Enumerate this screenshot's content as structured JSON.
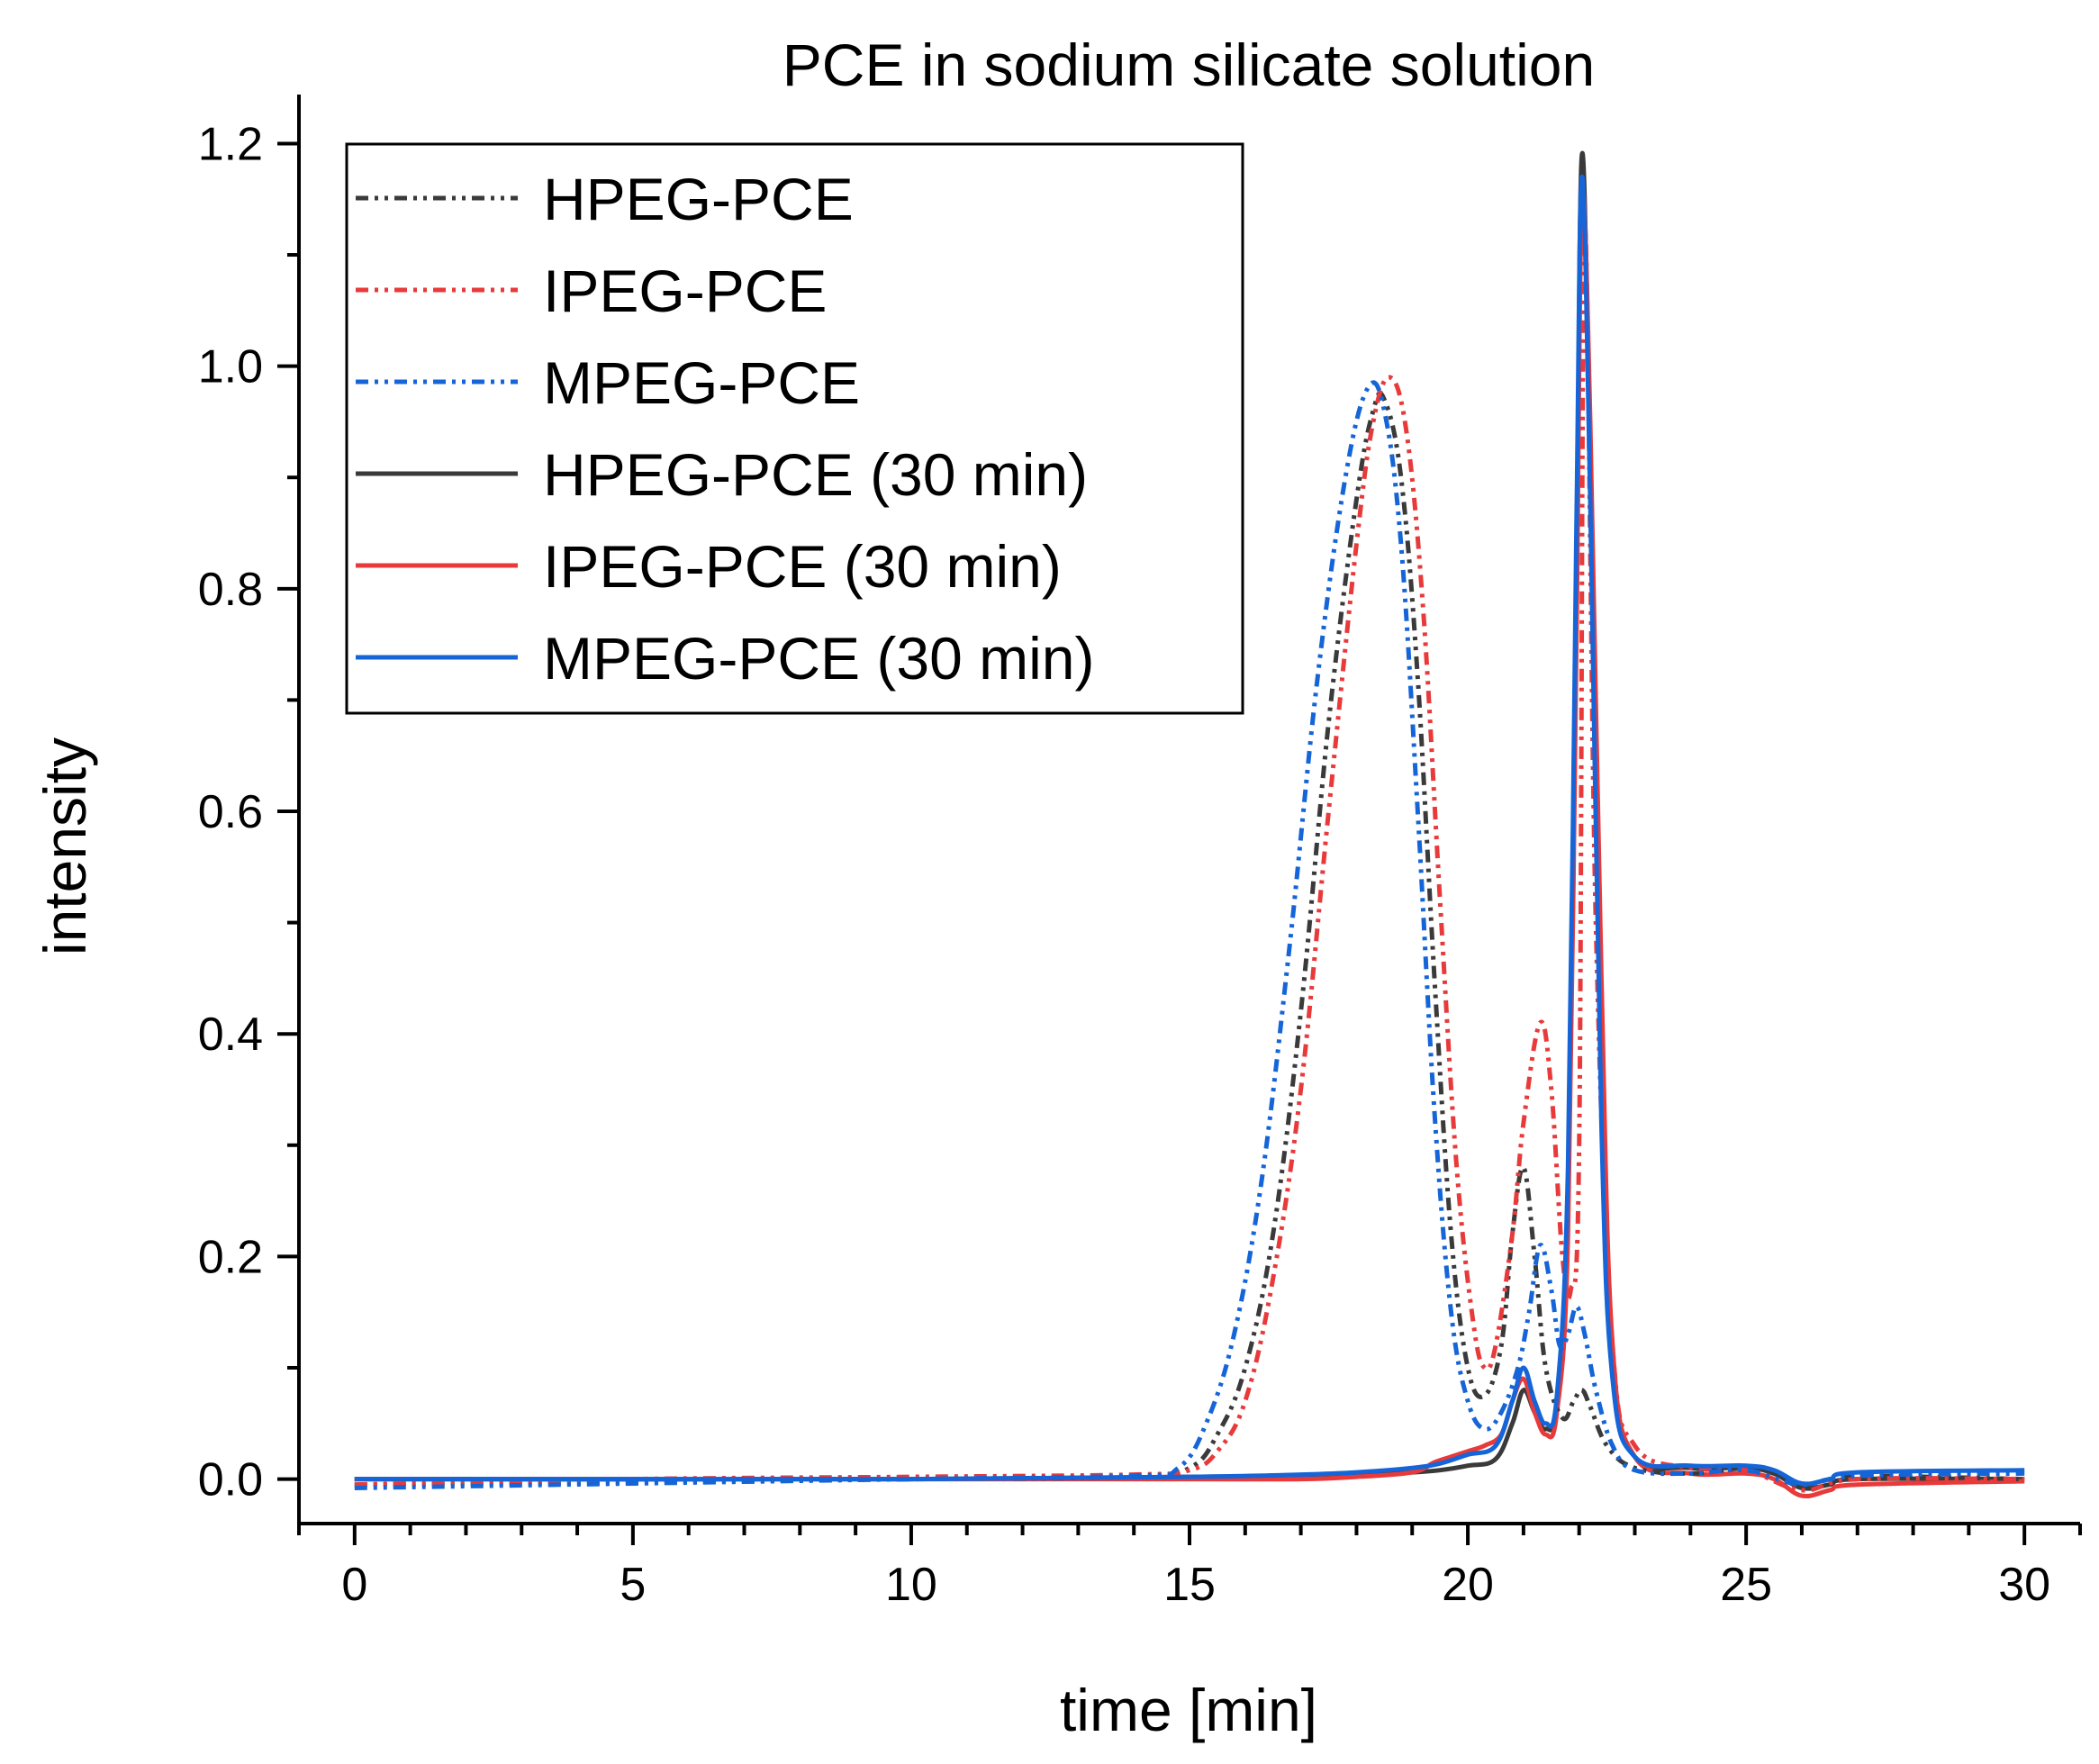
{
  "chart_data": {
    "type": "line",
    "title": "PCE in sodium silicate solution",
    "xlabel": "time [min]",
    "ylabel": "intensity",
    "xlim": [
      -1,
      31
    ],
    "ylim": [
      -0.04,
      1.24
    ],
    "xticks": [
      0,
      5,
      10,
      15,
      20,
      25,
      30
    ],
    "xtick_labels": [
      "0",
      "5",
      "10",
      "15",
      "20",
      "25",
      "30"
    ],
    "yticks": [
      0.0,
      0.2,
      0.4,
      0.6,
      0.8,
      1.0,
      1.2
    ],
    "ytick_labels": [
      "0.0",
      "0.2",
      "0.4",
      "0.6",
      "0.8",
      "1.0",
      "1.2"
    ],
    "legend_position": "top-left",
    "series": [
      {
        "name": "HPEG-PCE",
        "color": "#3a3a3a",
        "style": "dash-dot-dot",
        "points": [
          [
            0,
            -0.005
          ],
          [
            5,
            -0.003
          ],
          [
            10,
            0.0
          ],
          [
            14,
            0.002
          ],
          [
            15,
            0.01
          ],
          [
            15.5,
            0.04
          ],
          [
            16,
            0.1
          ],
          [
            16.5,
            0.22
          ],
          [
            17,
            0.42
          ],
          [
            17.5,
            0.68
          ],
          [
            18,
            0.88
          ],
          [
            18.3,
            0.96
          ],
          [
            18.5,
            0.97
          ],
          [
            18.8,
            0.9
          ],
          [
            19.1,
            0.72
          ],
          [
            19.4,
            0.45
          ],
          [
            19.7,
            0.22
          ],
          [
            20,
            0.1
          ],
          [
            20.3,
            0.075
          ],
          [
            20.6,
            0.12
          ],
          [
            20.8,
            0.22
          ],
          [
            21.0,
            0.28
          ],
          [
            21.2,
            0.2
          ],
          [
            21.4,
            0.1
          ],
          [
            21.7,
            0.055
          ],
          [
            21.9,
            0.07
          ],
          [
            22.05,
            0.08
          ],
          [
            22.2,
            0.065
          ],
          [
            22.5,
            0.03
          ],
          [
            23,
            0.01
          ],
          [
            24,
            0.005
          ],
          [
            25,
            0.01
          ],
          [
            25.5,
            0.005
          ],
          [
            26,
            -0.005
          ],
          [
            26.5,
            0.0
          ],
          [
            27,
            0.003
          ],
          [
            30,
            0.0
          ]
        ]
      },
      {
        "name": "IPEG-PCE",
        "color": "#e83a3a",
        "style": "dash-dot-dot",
        "points": [
          [
            0,
            -0.005
          ],
          [
            5,
            0.0
          ],
          [
            10,
            0.002
          ],
          [
            14,
            0.004
          ],
          [
            15,
            0.008
          ],
          [
            15.5,
            0.025
          ],
          [
            16,
            0.07
          ],
          [
            16.5,
            0.18
          ],
          [
            17,
            0.35
          ],
          [
            17.5,
            0.6
          ],
          [
            18,
            0.84
          ],
          [
            18.3,
            0.95
          ],
          [
            18.6,
            0.99
          ],
          [
            18.9,
            0.94
          ],
          [
            19.2,
            0.78
          ],
          [
            19.5,
            0.52
          ],
          [
            19.8,
            0.28
          ],
          [
            20.1,
            0.14
          ],
          [
            20.3,
            0.1
          ],
          [
            20.5,
            0.12
          ],
          [
            20.8,
            0.22
          ],
          [
            21.0,
            0.32
          ],
          [
            21.3,
            0.41
          ],
          [
            21.5,
            0.35
          ],
          [
            21.7,
            0.2
          ],
          [
            21.85,
            0.17
          ],
          [
            22.0,
            0.3
          ],
          [
            22.1,
            1.12
          ],
          [
            22.3,
            0.5
          ],
          [
            22.6,
            0.12
          ],
          [
            23,
            0.03
          ],
          [
            24,
            0.01
          ],
          [
            25,
            0.008
          ],
          [
            26,
            -0.01
          ],
          [
            27,
            0.0
          ],
          [
            30,
            0.0
          ]
        ]
      },
      {
        "name": "MPEG-PCE",
        "color": "#1565d8",
        "style": "dash-dot-dot",
        "points": [
          [
            0,
            -0.008
          ],
          [
            5,
            -0.004
          ],
          [
            10,
            0.0
          ],
          [
            14,
            0.003
          ],
          [
            14.8,
            0.01
          ],
          [
            15.3,
            0.05
          ],
          [
            15.8,
            0.13
          ],
          [
            16.3,
            0.27
          ],
          [
            16.8,
            0.48
          ],
          [
            17.3,
            0.72
          ],
          [
            17.8,
            0.9
          ],
          [
            18.2,
            0.98
          ],
          [
            18.5,
            0.96
          ],
          [
            18.8,
            0.84
          ],
          [
            19.1,
            0.6
          ],
          [
            19.4,
            0.33
          ],
          [
            19.7,
            0.15
          ],
          [
            20,
            0.07
          ],
          [
            20.3,
            0.045
          ],
          [
            20.6,
            0.06
          ],
          [
            20.9,
            0.1
          ],
          [
            21.1,
            0.15
          ],
          [
            21.3,
            0.21
          ],
          [
            21.5,
            0.17
          ],
          [
            21.65,
            0.12
          ],
          [
            21.8,
            0.13
          ],
          [
            21.95,
            0.155
          ],
          [
            22.1,
            0.13
          ],
          [
            22.3,
            0.08
          ],
          [
            22.6,
            0.03
          ],
          [
            23,
            0.008
          ],
          [
            24,
            0.005
          ],
          [
            25,
            0.008
          ],
          [
            26,
            -0.005
          ],
          [
            27,
            0.003
          ],
          [
            30,
            0.005
          ]
        ]
      },
      {
        "name": "HPEG-PCE (30 min)",
        "color": "#3a3a3a",
        "style": "solid",
        "points": [
          [
            0,
            0.0
          ],
          [
            10,
            0.0
          ],
          [
            15,
            0.002
          ],
          [
            17,
            0.003
          ],
          [
            18,
            0.004
          ],
          [
            19,
            0.006
          ],
          [
            19.5,
            0.008
          ],
          [
            20,
            0.012
          ],
          [
            20.5,
            0.018
          ],
          [
            20.8,
            0.05
          ],
          [
            21.0,
            0.08
          ],
          [
            21.2,
            0.06
          ],
          [
            21.4,
            0.045
          ],
          [
            21.6,
            0.07
          ],
          [
            21.8,
            0.25
          ],
          [
            21.95,
            0.8
          ],
          [
            22.05,
            1.19
          ],
          [
            22.2,
            0.9
          ],
          [
            22.4,
            0.35
          ],
          [
            22.6,
            0.1
          ],
          [
            23,
            0.02
          ],
          [
            24,
            0.01
          ],
          [
            25,
            0.01
          ],
          [
            25.5,
            0.005
          ],
          [
            26,
            -0.008
          ],
          [
            26.5,
            -0.005
          ],
          [
            27,
            0.0
          ],
          [
            30,
            0.0
          ]
        ]
      },
      {
        "name": "IPEG-PCE (30 min)",
        "color": "#e83a3a",
        "style": "solid",
        "points": [
          [
            0,
            0.0
          ],
          [
            10,
            0.0
          ],
          [
            15,
            0.0
          ],
          [
            17,
            0.0
          ],
          [
            18,
            0.002
          ],
          [
            19,
            0.006
          ],
          [
            19.4,
            0.015
          ],
          [
            19.7,
            0.02
          ],
          [
            20,
            0.025
          ],
          [
            20.3,
            0.03
          ],
          [
            20.6,
            0.04
          ],
          [
            20.8,
            0.07
          ],
          [
            21.0,
            0.09
          ],
          [
            21.2,
            0.06
          ],
          [
            21.4,
            0.04
          ],
          [
            21.6,
            0.06
          ],
          [
            21.8,
            0.22
          ],
          [
            21.95,
            0.75
          ],
          [
            22.05,
            1.15
          ],
          [
            22.2,
            0.95
          ],
          [
            22.4,
            0.45
          ],
          [
            22.6,
            0.12
          ],
          [
            23,
            0.02
          ],
          [
            24,
            0.005
          ],
          [
            25,
            0.005
          ],
          [
            25.5,
            0.0
          ],
          [
            26,
            -0.015
          ],
          [
            26.5,
            -0.01
          ],
          [
            27,
            -0.005
          ],
          [
            30,
            -0.002
          ]
        ]
      },
      {
        "name": "MPEG-PCE (30 min)",
        "color": "#1565d8",
        "style": "solid",
        "points": [
          [
            0,
            0.0
          ],
          [
            10,
            0.0
          ],
          [
            15,
            0.002
          ],
          [
            17,
            0.004
          ],
          [
            18,
            0.006
          ],
          [
            19,
            0.01
          ],
          [
            19.5,
            0.014
          ],
          [
            20,
            0.022
          ],
          [
            20.5,
            0.03
          ],
          [
            20.8,
            0.07
          ],
          [
            21.0,
            0.1
          ],
          [
            21.2,
            0.07
          ],
          [
            21.4,
            0.05
          ],
          [
            21.6,
            0.075
          ],
          [
            21.8,
            0.28
          ],
          [
            21.95,
            0.85
          ],
          [
            22.05,
            1.17
          ],
          [
            22.2,
            0.88
          ],
          [
            22.4,
            0.32
          ],
          [
            22.6,
            0.09
          ],
          [
            23,
            0.02
          ],
          [
            24,
            0.012
          ],
          [
            25,
            0.012
          ],
          [
            25.5,
            0.008
          ],
          [
            26,
            -0.004
          ],
          [
            26.5,
            0.0
          ],
          [
            27,
            0.006
          ],
          [
            30,
            0.008
          ]
        ]
      }
    ]
  }
}
